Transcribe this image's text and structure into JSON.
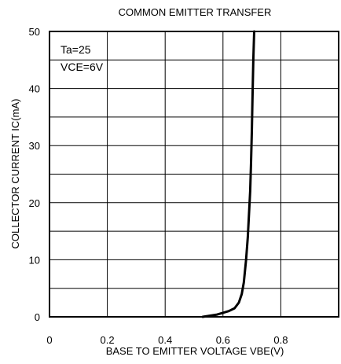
{
  "chart_data": {
    "type": "line",
    "title": "COMMON EMITTER TRANSFER",
    "xlabel": "BASE TO EMITTER VOLTAGE VBE(V)",
    "ylabel": "COLLECTOR CURRENT IC(mA)",
    "xlim": [
      0,
      1.0
    ],
    "ylim": [
      0,
      50
    ],
    "xticks": [
      0,
      0.2,
      0.4,
      0.6,
      0.8
    ],
    "xtick_labels": [
      "0",
      "0.2",
      "0.4",
      "0.6",
      "0.8"
    ],
    "yticks": [
      0,
      10,
      20,
      30,
      40,
      50
    ],
    "ytick_labels": [
      "0",
      "10",
      "20",
      "30",
      "40",
      "50"
    ],
    "x_grid": [
      0.2,
      0.4,
      0.6,
      0.8
    ],
    "y_grid": [
      5,
      10,
      15,
      20,
      25,
      30,
      35,
      40,
      45
    ],
    "grid": true,
    "annotations": [
      "Ta=25",
      "VCE=6V"
    ],
    "series": [
      {
        "x": [
          0.53,
          0.58,
          0.62,
          0.64,
          0.655,
          0.665,
          0.672,
          0.68,
          0.686,
          0.69,
          0.694,
          0.697,
          0.7,
          0.702,
          0.705,
          0.708
        ],
        "y": [
          0,
          0.4,
          1.0,
          1.5,
          2.5,
          4,
          6,
          10,
          14,
          18,
          22,
          27,
          33,
          38,
          45,
          50
        ]
      }
    ]
  }
}
